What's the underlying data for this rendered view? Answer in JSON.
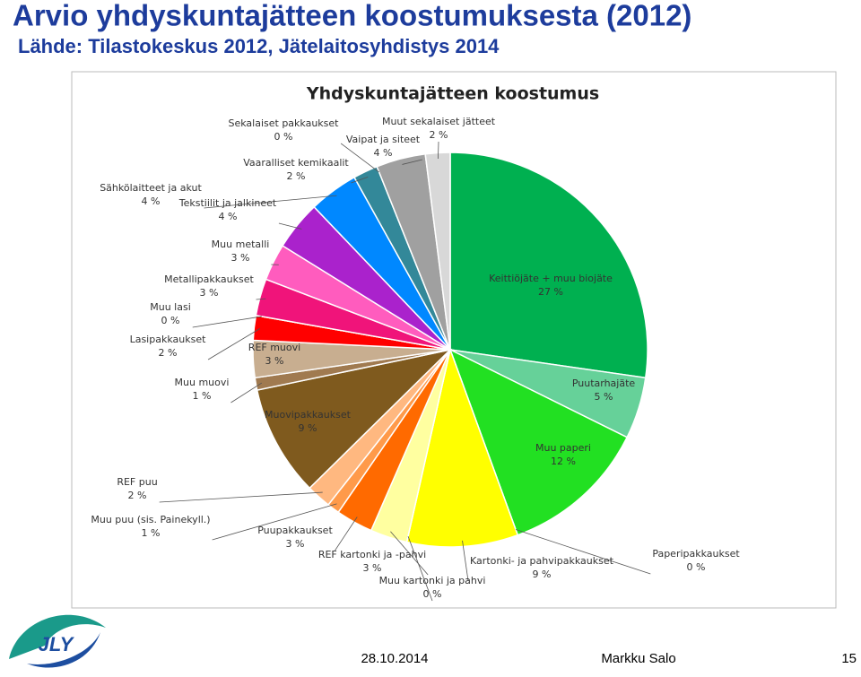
{
  "title": "Arvio yhdyskuntajätteen koostumuksesta (2012)",
  "subtitle": "Lähde: Tilastokeskus 2012, Jätelaitosyhdistys 2014",
  "logo": "JLY",
  "footer": {
    "date": "28.10.2014",
    "author": "Markku Salo",
    "page": "15"
  },
  "chart_data": {
    "type": "pie",
    "title": "Yhdyskuntajätteen koostumus",
    "categories": [
      "Keittiöjäte + muu biojäte",
      "Puutarhajäte",
      "Muu paperi",
      "Paperipakkaukset",
      "Kartonki- ja pahvipakkaukset",
      "Muu kartonki ja pahvi",
      "REF kartonki ja -pahvi",
      "Puupakkaukset",
      "Muu puu (sis. Painekyll.)",
      "REF puu",
      "Muovipakkaukset",
      "Muu muovi",
      "REF muovi",
      "Lasipakkaukset",
      "Muu lasi",
      "Metallipakkaukset",
      "Muu metalli",
      "Tekstiilit ja jalkineet",
      "Sähkölaitteet ja akut",
      "Vaaralliset kemikaalit",
      "Sekalaiset pakkaukset",
      "Vaipat ja siteet",
      "Muut sekalaiset jätteet"
    ],
    "values": [
      27,
      5,
      12,
      0,
      9,
      0,
      3,
      3,
      1,
      2,
      9,
      1,
      3,
      2,
      0,
      3,
      3,
      4,
      4,
      2,
      0,
      4,
      2
    ],
    "value_labels": [
      "27 %",
      "5 %",
      "12 %",
      "0 %",
      "9 %",
      "0 %",
      "3 %",
      "3 %",
      "1 %",
      "2 %",
      "9 %",
      "1 %",
      "3 %",
      "2 %",
      "0 %",
      "3 %",
      "3 %",
      "4 %",
      "4 %",
      "2 %",
      "0 %",
      "4 %",
      "2 %"
    ],
    "colors": [
      "#00b050",
      "#66d199",
      "#22e022",
      "#8fd08f",
      "#ffff00",
      "#ffff66",
      "#ffffa0",
      "#ff6a00",
      "#ff9a4a",
      "#ffb880",
      "#7f5a1e",
      "#a07a50",
      "#c8ae90",
      "#ff0000",
      "#ff3b3b",
      "#f0147a",
      "#ff5cbe",
      "#aa22cc",
      "#0088ff",
      "#338899",
      "#556070",
      "#a0a0a0",
      "#d8d8d8"
    ]
  }
}
